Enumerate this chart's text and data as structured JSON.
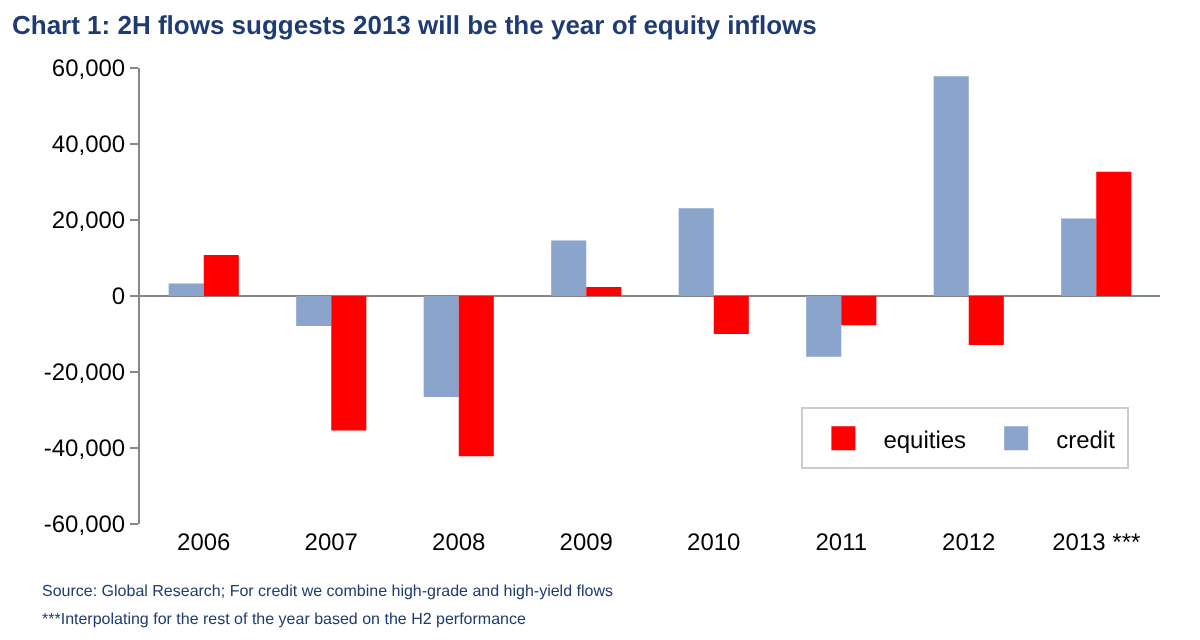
{
  "chart_data": {
    "type": "bar",
    "title": "Chart 1: 2H flows suggests 2013 will be the year of equity inflows",
    "categories": [
      "2006",
      "2007",
      "2008",
      "2009",
      "2010",
      "2011",
      "2012",
      "2013 ***"
    ],
    "series": [
      {
        "name": "credit",
        "color": "#8aa4cc",
        "values": [
          3300,
          -7900,
          -26600,
          14600,
          23100,
          -16000,
          57800,
          20400
        ]
      },
      {
        "name": "equities",
        "color": "#ff0000",
        "values": [
          10800,
          -35400,
          -42200,
          2400,
          -10000,
          -7700,
          -12900,
          32700
        ]
      }
    ],
    "ylim": [
      -60000,
      60000
    ],
    "yticks": [
      {
        "value": -60000,
        "label": "-60,000"
      },
      {
        "value": -40000,
        "label": "-40,000"
      },
      {
        "value": -20000,
        "label": "-20,000"
      },
      0,
      {
        "value": 20000,
        "label": "20,000"
      },
      {
        "value": 40000,
        "label": "40,000"
      },
      {
        "value": 60000,
        "label": "60,000"
      }
    ],
    "legend": "bottom right",
    "annotations": [
      "Source: Global Research; For credit we combine high-grade and high-yield flows",
      "***Interpolating for the rest of the year based on the H2 performance"
    ]
  }
}
